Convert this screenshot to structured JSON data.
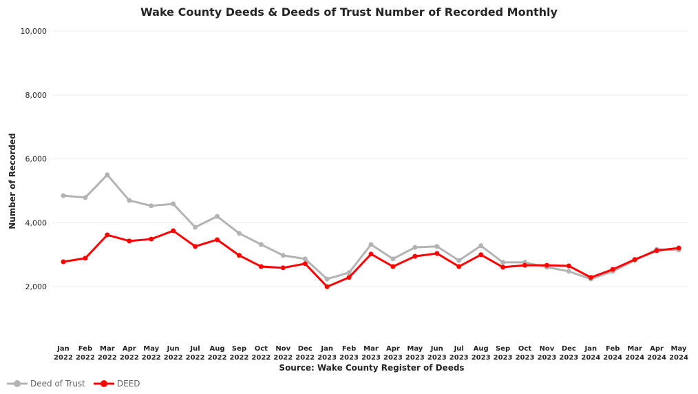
{
  "chart_data": {
    "type": "line",
    "title": "Wake County Deeds & Deeds of Trust Number of Recorded Monthly",
    "xlabel": "Source: Wake County Register of Deeds",
    "ylabel": "Number of Recorded",
    "ylim": [
      0,
      10000
    ],
    "yticks": [
      "2,000",
      "4,000",
      "6,000",
      "8,000",
      "10,000"
    ],
    "ytick_values": [
      2000,
      4000,
      6000,
      8000,
      10000
    ],
    "grid": true,
    "legend": "bottom-left",
    "categories": [
      [
        "Jan",
        "2022"
      ],
      [
        "Feb",
        "2022"
      ],
      [
        "Mar",
        "2022"
      ],
      [
        "Apr",
        "2022"
      ],
      [
        "May",
        "2022"
      ],
      [
        "Jun",
        "2022"
      ],
      [
        "Jul",
        "2022"
      ],
      [
        "Aug",
        "2022"
      ],
      [
        "Sep",
        "2022"
      ],
      [
        "Oct",
        "2022"
      ],
      [
        "Nov",
        "2022"
      ],
      [
        "Dec",
        "2022"
      ],
      [
        "Jan",
        "2023"
      ],
      [
        "Feb",
        "2023"
      ],
      [
        "Mar",
        "2023"
      ],
      [
        "Apr",
        "2023"
      ],
      [
        "May",
        "2023"
      ],
      [
        "Jun",
        "2023"
      ],
      [
        "Jul",
        "2023"
      ],
      [
        "Aug",
        "2023"
      ],
      [
        "Sep",
        "2023"
      ],
      [
        "Oct",
        "2023"
      ],
      [
        "Nov",
        "2023"
      ],
      [
        "Dec",
        "2023"
      ],
      [
        "Jan",
        "2024"
      ],
      [
        "Feb",
        "2024"
      ],
      [
        "Mar",
        "2024"
      ],
      [
        "Apr",
        "2024"
      ],
      [
        "May",
        "2024"
      ]
    ],
    "series": [
      {
        "name": "Deed of Trust",
        "color": "#b3b3b3",
        "values": [
          4850,
          4790,
          5500,
          4700,
          4530,
          4590,
          3860,
          4200,
          3670,
          3320,
          2980,
          2870,
          2240,
          2440,
          3320,
          2870,
          3230,
          3260,
          2820,
          3280,
          2760,
          2760,
          2610,
          2480,
          2240,
          2480,
          2820,
          3170,
          3150
        ]
      },
      {
        "name": "DEED",
        "color": "#ff0000",
        "values": [
          2780,
          2890,
          3620,
          3430,
          3490,
          3750,
          3260,
          3470,
          2980,
          2630,
          2590,
          2720,
          2000,
          2290,
          3020,
          2630,
          2950,
          3040,
          2630,
          3000,
          2610,
          2670,
          2670,
          2650,
          2290,
          2540,
          2850,
          3130,
          3210
        ]
      }
    ]
  }
}
